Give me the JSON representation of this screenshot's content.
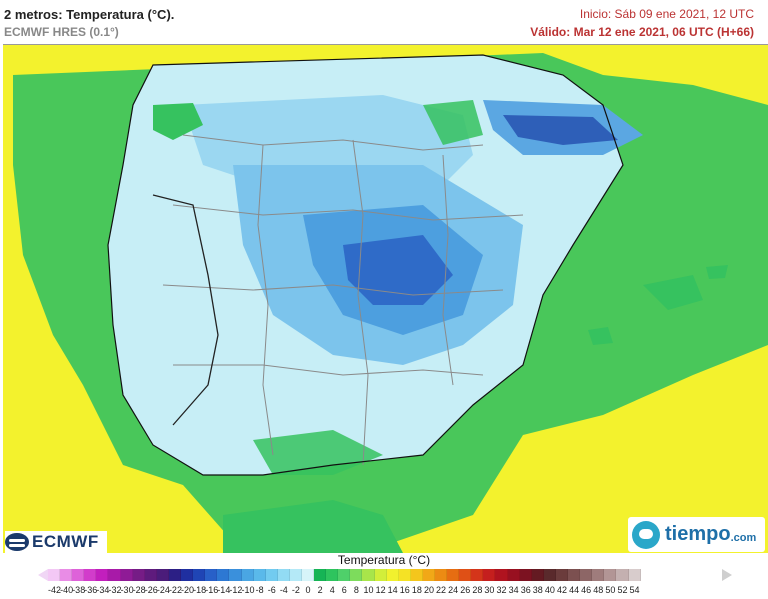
{
  "header": {
    "title": "2 metros: Temperatura (°C).",
    "model": "ECMWF HRES (0.1°)",
    "init": "Inicio: Sáb 09 ene 2021, 12 UTC",
    "valid": "Válido: Mar 12 ene 2021, 06 UTC (H+66)"
  },
  "logos": {
    "left": "ECMWF",
    "right_main": "tiempo",
    "right_suffix": ".com"
  },
  "legend": {
    "title": "Temperatura (°C)",
    "ticks": [
      "-42",
      "-40",
      "-38",
      "-36",
      "-34",
      "-32",
      "-30",
      "-28",
      "-26",
      "-24",
      "-22",
      "-20",
      "-18",
      "-16",
      "-14",
      "-12",
      "-10",
      "-8",
      "-6",
      "-4",
      "-2",
      "0",
      "2",
      "4",
      "6",
      "8",
      "10",
      "12",
      "14",
      "16",
      "18",
      "20",
      "22",
      "24",
      "26",
      "28",
      "30",
      "32",
      "34",
      "36",
      "38",
      "40",
      "42",
      "44",
      "46",
      "48",
      "50",
      "52",
      "54"
    ],
    "colors": [
      "#f3c8f5",
      "#e98ce6",
      "#de62d9",
      "#d23ccb",
      "#c21fbd",
      "#a81aa8",
      "#8f1b96",
      "#761c86",
      "#5f1b7d",
      "#4b1c7a",
      "#2c1f85",
      "#1f2fa0",
      "#1f45b5",
      "#2860c8",
      "#2d78d3",
      "#3a90dc",
      "#4aa6e3",
      "#5ab9ea",
      "#72cbf0",
      "#92dbf4",
      "#b4e9f7",
      "#d7f4f9",
      "#16b455",
      "#2ec45e",
      "#4fd06a",
      "#7ddc5c",
      "#a8e54a",
      "#d2ee3a",
      "#f1f12e",
      "#f5e225",
      "#f4c61c",
      "#f1a817",
      "#ec8b13",
      "#e66d12",
      "#df5016",
      "#d4351a",
      "#c51f1e",
      "#b0131f",
      "#981020",
      "#7c1221",
      "#641a22",
      "#5a2a2c",
      "#6b3c3c",
      "#7c5050",
      "#8d6666",
      "#9f7c7c",
      "#b29595",
      "#c4b0b0",
      "#d8cccc"
    ]
  },
  "map": {
    "projection_region": "Iberian Peninsula and Balearic Islands",
    "sea_color": "#f3f22d",
    "near_coast_color": "#34c25e",
    "land_colors": [
      "#c8eef7",
      "#9dd9f2",
      "#5bb4e6",
      "#3a7fd0",
      "#2b5cb8"
    ]
  }
}
